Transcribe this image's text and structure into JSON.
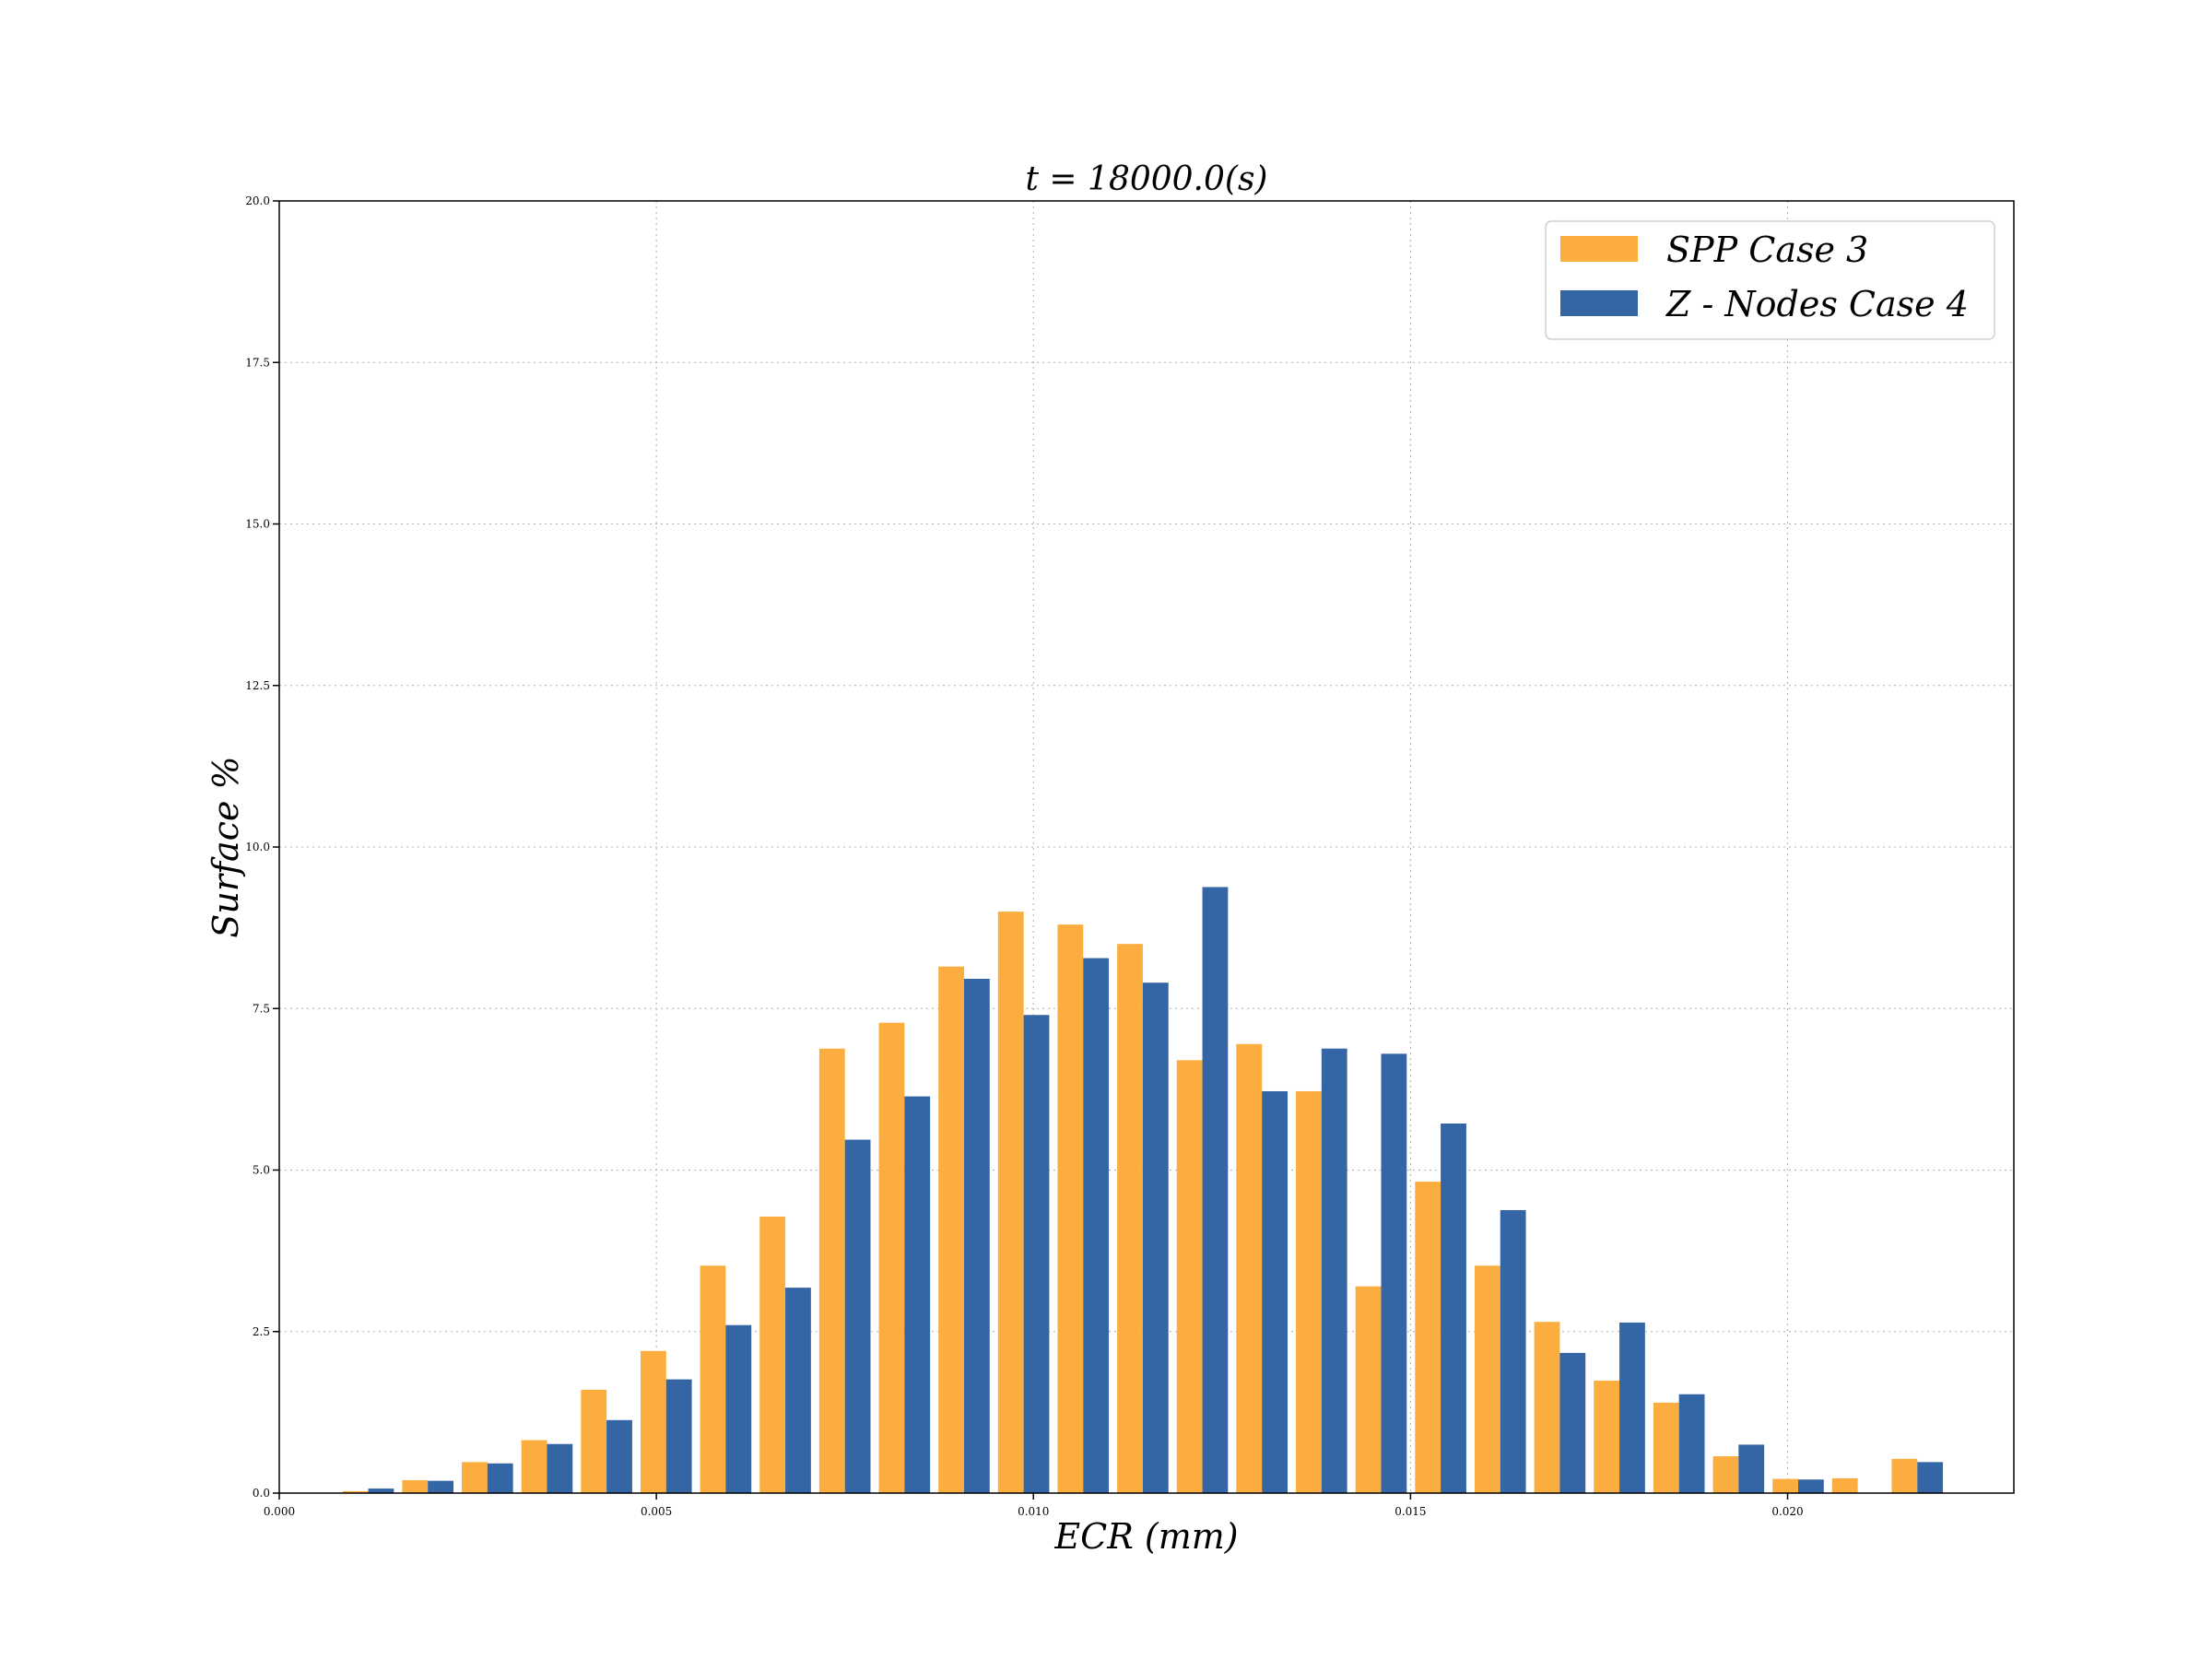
{
  "chart_data": {
    "type": "bar",
    "title": "t = 18000.0(s)",
    "xlabel": "ECR (mm)",
    "ylabel": "Surface %",
    "xlim": [
      0.0,
      0.023
    ],
    "ylim": [
      0.0,
      20.0
    ],
    "x_ticks": [
      "0.000",
      "0.005",
      "0.010",
      "0.015",
      "0.020"
    ],
    "x_tick_values": [
      0.0,
      0.005,
      0.01,
      0.015,
      0.02
    ],
    "y_ticks": [
      "0.0",
      "2.5",
      "5.0",
      "7.5",
      "10.0",
      "12.5",
      "15.0",
      "17.5",
      "20.0"
    ],
    "y_tick_values": [
      0.0,
      2.5,
      5.0,
      7.5,
      10.0,
      12.5,
      15.0,
      17.5,
      20.0
    ],
    "grid": true,
    "legend_position": "top-right",
    "bin_centers": [
      0.00118,
      0.00197,
      0.00276,
      0.00355,
      0.00434,
      0.00513,
      0.00592,
      0.00671,
      0.0075,
      0.00829,
      0.00908,
      0.00987,
      0.01066,
      0.01145,
      0.01224,
      0.01303,
      0.01382,
      0.01461,
      0.0154,
      0.01619,
      0.01698,
      0.01777,
      0.01856,
      0.01935,
      0.02014,
      0.02093,
      0.02172
    ],
    "series": [
      {
        "name": "SPP Case 3",
        "color": "#FBAE3F",
        "values": [
          0.03,
          0.2,
          0.48,
          0.82,
          1.6,
          2.2,
          3.52,
          4.28,
          6.88,
          7.28,
          8.15,
          9.0,
          8.8,
          8.5,
          6.7,
          6.95,
          6.22,
          3.2,
          4.82,
          3.52,
          2.65,
          1.74,
          1.4,
          0.57,
          0.22,
          0.23,
          0.53
        ]
      },
      {
        "name": "Z - Nodes Case 4",
        "color": "#3465A4",
        "values": [
          0.07,
          0.19,
          0.46,
          0.76,
          1.13,
          1.76,
          2.6,
          3.18,
          5.47,
          6.14,
          7.96,
          7.4,
          8.28,
          7.9,
          9.38,
          6.22,
          6.88,
          6.8,
          5.72,
          4.38,
          2.17,
          2.64,
          1.53,
          0.75,
          0.21,
          0.0,
          0.48
        ]
      }
    ]
  }
}
